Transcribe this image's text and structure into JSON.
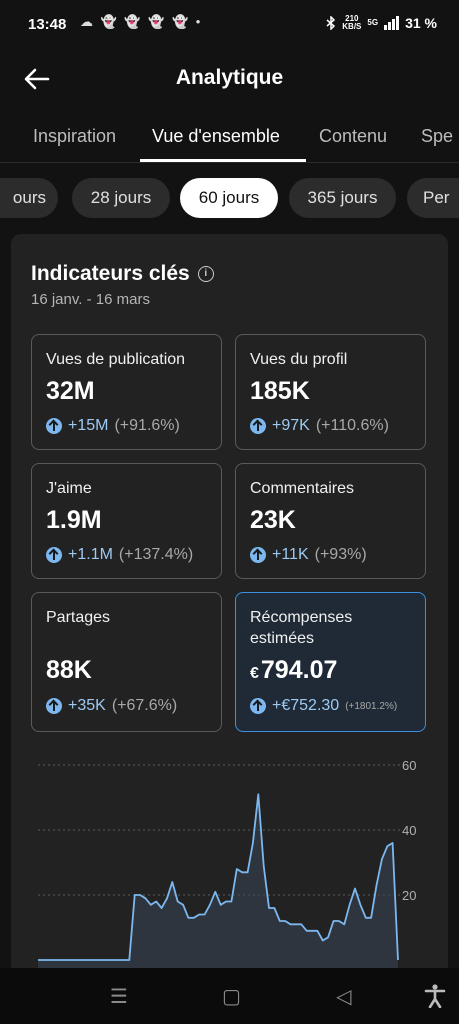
{
  "status": {
    "time": "13:48",
    "notifications": "☁ 👻 👻 👻 👻 •",
    "speed_value": "210",
    "speed_unit": "KB/S",
    "network": "5G",
    "battery": "31 %"
  },
  "header": {
    "title": "Analytique"
  },
  "tabs": [
    {
      "label": "Inspiration"
    },
    {
      "label": "Vue d'ensemble"
    },
    {
      "label": "Contenu"
    },
    {
      "label": "Spe"
    }
  ],
  "periods": [
    {
      "label": "ours"
    },
    {
      "label": "28 jours"
    },
    {
      "label": "60 jours"
    },
    {
      "label": "365 jours"
    },
    {
      "label": "Per"
    }
  ],
  "key_metrics": {
    "title": "Indicateurs clés",
    "date_range": "16 janv. - 16 mars",
    "items": [
      {
        "label": "Vues de publication",
        "value": "32M",
        "change": "+15M",
        "pct": "(+91.6%)"
      },
      {
        "label": "Vues du profil",
        "value": "185K",
        "change": "+97K",
        "pct": "(+110.6%)"
      },
      {
        "label": "J'aime",
        "value": "1.9M",
        "change": "+1.1M",
        "pct": "(+137.4%)"
      },
      {
        "label": "Commentaires",
        "value": "23K",
        "change": "+11K",
        "pct": "(+93%)"
      },
      {
        "label": "Partages",
        "value": "88K",
        "change": "+35K",
        "pct": "(+67.6%)"
      },
      {
        "label": "Récompenses estimées",
        "currency": "€",
        "value": "794.07",
        "change": "+€752.30",
        "pct": "(+1801.2%)"
      }
    ]
  },
  "colors": {
    "accent": "#9ccaf3",
    "line": "#7cb8ef",
    "highlight_border": "#3d8fe0"
  },
  "chart_data": {
    "type": "area",
    "y_ticks": [
      "60",
      "40",
      "20"
    ],
    "ylim": [
      0,
      60
    ],
    "grid": true,
    "values": [
      0,
      0,
      0,
      0,
      0,
      0,
      0,
      0,
      0,
      0,
      0,
      0,
      0,
      0,
      0,
      0,
      0,
      0,
      20,
      20,
      19,
      17,
      18,
      16,
      19,
      24,
      18,
      17,
      13,
      13,
      14,
      14,
      17,
      21,
      17,
      18,
      18,
      28,
      27,
      27,
      36,
      51,
      29,
      16,
      16,
      12,
      12,
      11,
      11,
      11,
      9,
      9,
      9,
      6,
      7,
      12,
      12,
      11,
      17,
      22,
      17,
      13,
      13,
      23,
      31,
      35,
      36,
      0
    ]
  }
}
